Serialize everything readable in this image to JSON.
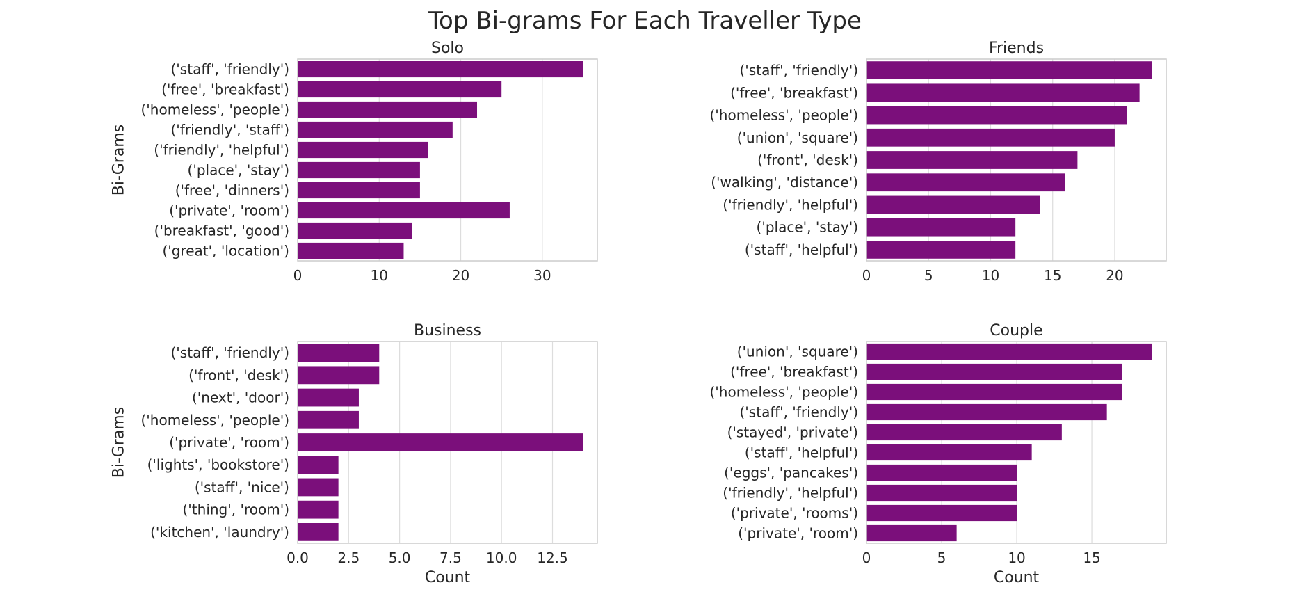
{
  "suptitle": "Top Bi-grams For Each Traveller Type",
  "colors": {
    "bar": "#7b0f7b",
    "grid": "#dddddd",
    "axes": "#cccccc",
    "text": "#262626"
  },
  "chart_data": [
    {
      "type": "bar",
      "orientation": "horizontal",
      "title": "Solo",
      "xlabel": "",
      "ylabel": "Bi-Grams",
      "categories": [
        "('staff', 'friendly')",
        "('free', 'breakfast')",
        "('homeless', 'people')",
        "('friendly', 'staff')",
        "('friendly', 'helpful')",
        "('place', 'stay')",
        "('free', 'dinners')",
        "('private', 'room')",
        "('breakfast', 'good')",
        "('great', 'location')"
      ],
      "values": [
        35,
        25,
        22,
        19,
        16,
        15,
        15,
        26,
        14,
        13
      ],
      "xlim": [
        0,
        36.75
      ],
      "xticks": [
        0,
        10,
        20,
        30
      ],
      "xtick_labels": [
        "0",
        "10",
        "20",
        "30"
      ],
      "grid": true
    },
    {
      "type": "bar",
      "orientation": "horizontal",
      "title": "Friends",
      "xlabel": "",
      "ylabel": "",
      "categories": [
        "('staff', 'friendly')",
        "('free', 'breakfast')",
        "('homeless', 'people')",
        "('union', 'square')",
        "('front', 'desk')",
        "('walking', 'distance')",
        "('friendly', 'helpful')",
        "('place', 'stay')",
        "('staff', 'helpful')"
      ],
      "values": [
        23,
        22,
        21,
        20,
        17,
        16,
        14,
        12,
        12
      ],
      "xlim": [
        0,
        24.15
      ],
      "xticks": [
        0,
        5,
        10,
        15,
        20
      ],
      "xtick_labels": [
        "0",
        "5",
        "10",
        "15",
        "20"
      ],
      "grid": true
    },
    {
      "type": "bar",
      "orientation": "horizontal",
      "title": "Business",
      "xlabel": "Count",
      "ylabel": "Bi-Grams",
      "categories": [
        "('staff', 'friendly')",
        "('front', 'desk')",
        "('next', 'door')",
        "('homeless', 'people')",
        "('private', 'room')",
        "('lights', 'bookstore')",
        "('staff', 'nice')",
        "('thing', 'room')",
        "('kitchen', 'laundry')"
      ],
      "values": [
        4,
        4,
        3,
        3,
        14,
        2,
        2,
        2,
        2
      ],
      "xlim": [
        0,
        14.7
      ],
      "xticks": [
        0,
        2.5,
        5,
        7.5,
        10,
        12.5
      ],
      "xtick_labels": [
        "0.0",
        "2.5",
        "5.0",
        "7.5",
        "10.0",
        "12.5"
      ],
      "grid": true
    },
    {
      "type": "bar",
      "orientation": "horizontal",
      "title": "Couple",
      "xlabel": "Count",
      "ylabel": "",
      "categories": [
        "('union', 'square')",
        "('free', 'breakfast')",
        "('homeless', 'people')",
        "('staff', 'friendly')",
        "('stayed', 'private')",
        "('staff', 'helpful')",
        "('eggs', 'pancakes')",
        "('friendly', 'helpful')",
        "('private', 'rooms')",
        "('private', 'room')"
      ],
      "values": [
        19,
        17,
        17,
        16,
        13,
        11,
        10,
        10,
        10,
        6
      ],
      "xlim": [
        0,
        19.95
      ],
      "xticks": [
        0,
        5,
        10,
        15
      ],
      "xtick_labels": [
        "0",
        "5",
        "10",
        "15"
      ],
      "grid": true
    }
  ]
}
